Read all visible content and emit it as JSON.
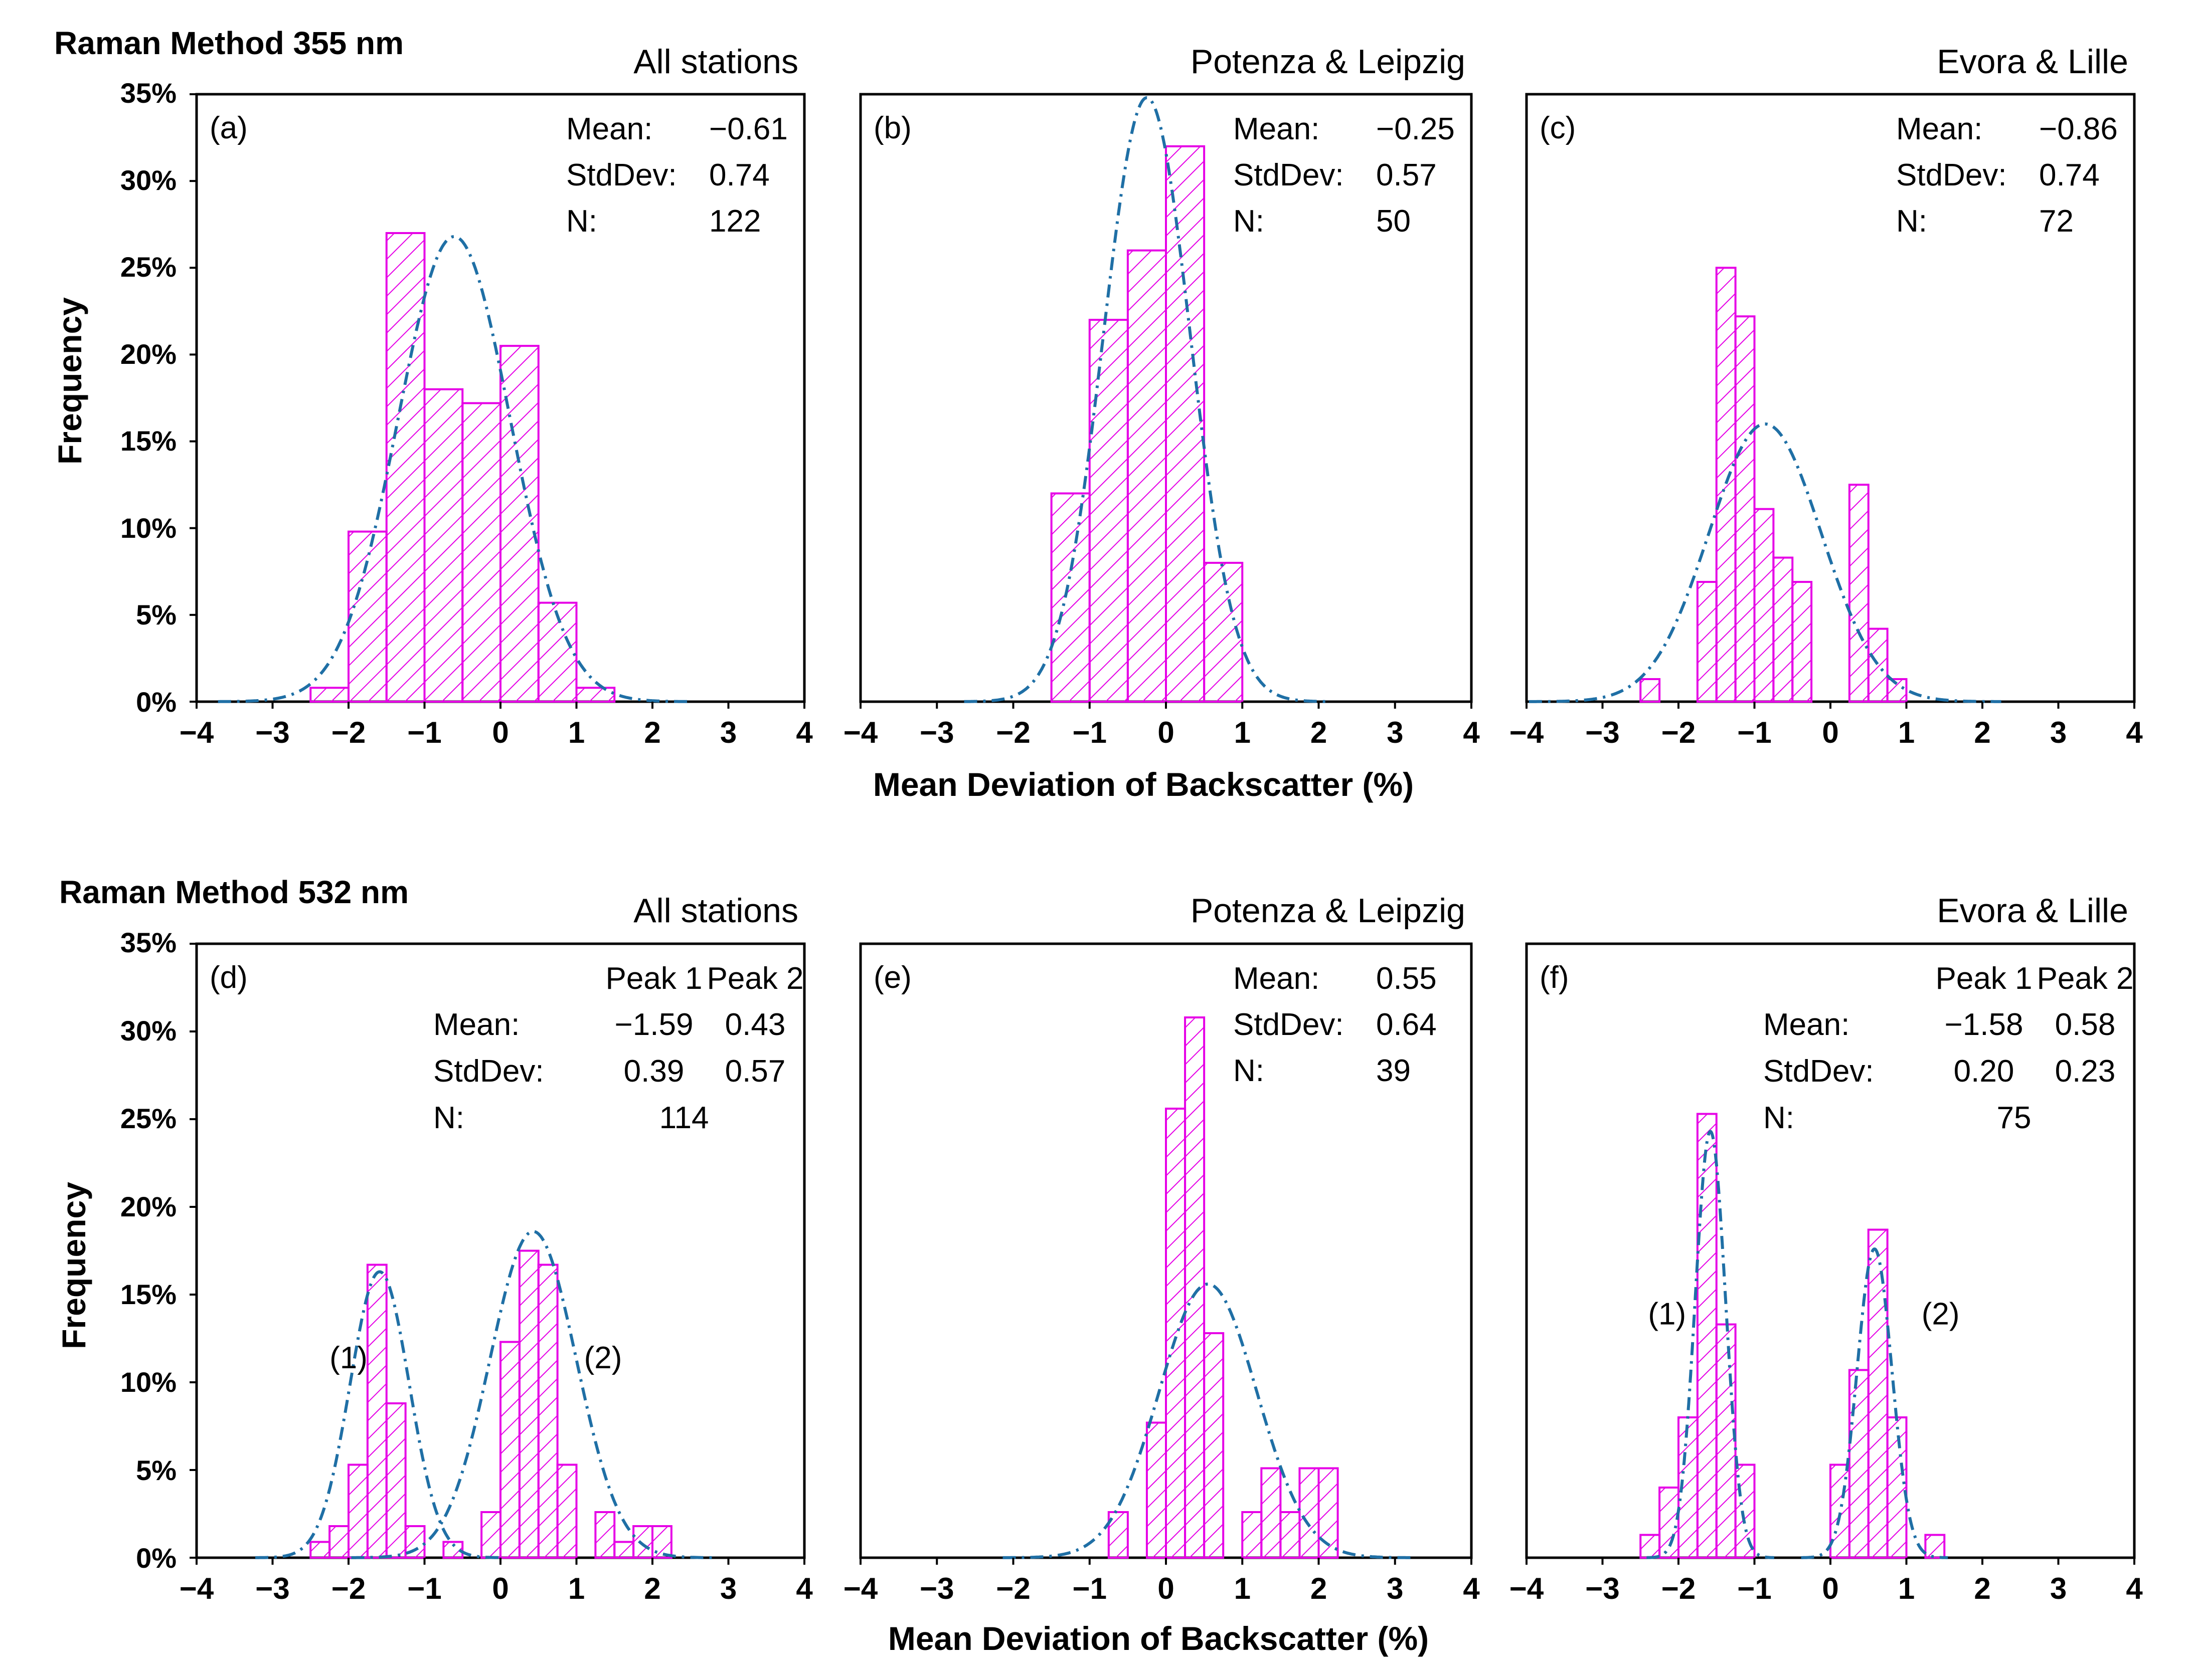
{
  "colors": {
    "bar": "#e600e6",
    "curve": "#1f6fa5",
    "axis": "#000000"
  },
  "rows": [
    {
      "title": "Raman Method  355 nm",
      "ylabel": "Frequency",
      "xlabel": "Mean Deviation of Backscatter (%)"
    },
    {
      "title": "Raman Method  532 nm",
      "ylabel": "Frequency",
      "xlabel": "Mean Deviation of Backscatter (%)"
    }
  ],
  "y_ticks": [
    "0%",
    "5%",
    "10%",
    "15%",
    "20%",
    "25%",
    "30%",
    "35%"
  ],
  "x_ticks": [
    "−4",
    "−3",
    "−2",
    "−1",
    "0",
    "1",
    "2",
    "3",
    "4"
  ],
  "chart_data": [
    {
      "id": "a",
      "type": "bar",
      "row": 0,
      "col": 0,
      "letter": "(a)",
      "title": "All stations",
      "xlim": [
        -4,
        4
      ],
      "ylim": [
        0,
        35
      ],
      "bin_width": 0.5,
      "bins": [
        [
          -2.5,
          0.8
        ],
        [
          -2.0,
          9.8
        ],
        [
          -1.5,
          27.0
        ],
        [
          -1.0,
          18.0
        ],
        [
          -0.5,
          17.2
        ],
        [
          0.0,
          20.5
        ],
        [
          0.5,
          5.7
        ],
        [
          1.0,
          0.8
        ]
      ],
      "fits": [
        {
          "mean": -0.61,
          "sd": 0.74,
          "peak": 26.8
        }
      ],
      "stats": {
        "Mean": {
          "label": "Mean:",
          "v1": "−0.61"
        },
        "StdDev": {
          "label": "StdDev:",
          "v1": "0.74"
        },
        "N": {
          "label": "N:",
          "v1": "122"
        }
      },
      "peak_labels": []
    },
    {
      "id": "b",
      "type": "bar",
      "row": 0,
      "col": 1,
      "letter": "(b)",
      "title": "Potenza & Leipzig",
      "xlim": [
        -4,
        4
      ],
      "ylim": [
        0,
        35
      ],
      "bin_width": 0.5,
      "bins": [
        [
          -1.5,
          12.0
        ],
        [
          -1.0,
          22.0
        ],
        [
          -0.5,
          26.0
        ],
        [
          0.0,
          32.0
        ],
        [
          0.5,
          8.0
        ]
      ],
      "fits": [
        {
          "mean": -0.25,
          "sd": 0.57,
          "peak": 34.8
        }
      ],
      "stats": {
        "Mean": {
          "label": "Mean:",
          "v1": "−0.25"
        },
        "StdDev": {
          "label": "StdDev:",
          "v1": "0.57"
        },
        "N": {
          "label": "N:",
          "v1": "50"
        }
      },
      "peak_labels": []
    },
    {
      "id": "c",
      "type": "bar",
      "row": 0,
      "col": 2,
      "letter": "(c)",
      "title": "Evora & Lille",
      "xlim": [
        -4,
        4
      ],
      "ylim": [
        0,
        35
      ],
      "bin_width": 0.25,
      "bins": [
        [
          -2.5,
          1.3
        ],
        [
          -1.75,
          6.9
        ],
        [
          -1.5,
          25.0
        ],
        [
          -1.25,
          22.2
        ],
        [
          -1.0,
          11.1
        ],
        [
          -0.75,
          8.3
        ],
        [
          -0.5,
          6.9
        ],
        [
          0.25,
          12.5
        ],
        [
          0.5,
          4.2
        ],
        [
          0.75,
          1.3
        ]
      ],
      "fits": [
        {
          "mean": -0.86,
          "sd": 0.74,
          "peak": 16.0
        }
      ],
      "stats": {
        "Mean": {
          "label": "Mean:",
          "v1": "−0.86"
        },
        "StdDev": {
          "label": "StdDev:",
          "v1": "0.74"
        },
        "N": {
          "label": "N:",
          "v1": "72"
        }
      },
      "peak_labels": []
    },
    {
      "id": "d",
      "type": "bar",
      "row": 1,
      "col": 0,
      "letter": "(d)",
      "title": "All stations",
      "xlim": [
        -4,
        4
      ],
      "ylim": [
        0,
        35
      ],
      "bin_width": 0.25,
      "bins": [
        [
          -2.5,
          0.9
        ],
        [
          -2.25,
          1.8
        ],
        [
          -2.0,
          5.3
        ],
        [
          -1.75,
          16.7
        ],
        [
          -1.5,
          8.8
        ],
        [
          -1.25,
          1.8
        ],
        [
          -0.75,
          0.9
        ],
        [
          -0.25,
          2.6
        ],
        [
          0.0,
          12.3
        ],
        [
          0.25,
          17.5
        ],
        [
          0.5,
          16.7
        ],
        [
          0.75,
          5.3
        ],
        [
          1.25,
          2.6
        ],
        [
          1.5,
          0.9
        ],
        [
          1.75,
          1.8
        ],
        [
          2.0,
          1.8
        ]
      ],
      "fits": [
        {
          "mean": -1.59,
          "sd": 0.39,
          "peak": 16.3
        },
        {
          "mean": 0.43,
          "sd": 0.57,
          "peak": 18.6
        }
      ],
      "stats": {
        "header": [
          "Peak 1",
          "Peak 2"
        ],
        "Mean": {
          "label": "Mean:",
          "v1": "−1.59",
          "v2": "0.43"
        },
        "StdDev": {
          "label": "StdDev:",
          "v1": "0.39",
          "v2": "0.57"
        },
        "N": {
          "label": "N:",
          "v1": "114"
        }
      },
      "peak_labels": [
        {
          "text": "(1)",
          "x": -2.0,
          "y": 10.8
        },
        {
          "text": "(2)",
          "x": 1.35,
          "y": 10.8
        }
      ]
    },
    {
      "id": "e",
      "type": "bar",
      "row": 1,
      "col": 1,
      "letter": "(e)",
      "title": "Potenza & Leipzig",
      "xlim": [
        -4,
        4
      ],
      "ylim": [
        0,
        35
      ],
      "bin_width": 0.25,
      "bins": [
        [
          -0.75,
          2.6
        ],
        [
          -0.25,
          7.7
        ],
        [
          0.0,
          25.6
        ],
        [
          0.25,
          30.8
        ],
        [
          0.5,
          12.8
        ],
        [
          1.0,
          2.6
        ],
        [
          1.25,
          5.1
        ],
        [
          1.5,
          2.6
        ],
        [
          1.75,
          5.1
        ],
        [
          2.0,
          5.1
        ]
      ],
      "fits": [
        {
          "mean": 0.55,
          "sd": 0.64,
          "peak": 15.6
        }
      ],
      "stats": {
        "Mean": {
          "label": "Mean:",
          "v1": "0.55"
        },
        "StdDev": {
          "label": "StdDev:",
          "v1": "0.64"
        },
        "N": {
          "label": "N:",
          "v1": "39"
        }
      },
      "peak_labels": []
    },
    {
      "id": "f",
      "type": "bar",
      "row": 1,
      "col": 2,
      "letter": "(f)",
      "title": "Evora & Lille",
      "xlim": [
        -4,
        4
      ],
      "ylim": [
        0,
        35
      ],
      "bin_width": 0.25,
      "bins": [
        [
          -2.5,
          1.3
        ],
        [
          -2.25,
          4.0
        ],
        [
          -2.0,
          8.0
        ],
        [
          -1.75,
          25.3
        ],
        [
          -1.5,
          13.3
        ],
        [
          -1.25,
          5.3
        ],
        [
          0.0,
          5.3
        ],
        [
          0.25,
          10.7
        ],
        [
          0.5,
          18.7
        ],
        [
          0.75,
          8.0
        ],
        [
          1.25,
          1.3
        ]
      ],
      "fits": [
        {
          "mean": -1.58,
          "sd": 0.2,
          "peak": 24.3
        },
        {
          "mean": 0.58,
          "sd": 0.23,
          "peak": 17.6
        }
      ],
      "stats": {
        "header": [
          "Peak 1",
          "Peak 2"
        ],
        "Mean": {
          "label": "Mean:",
          "v1": "−1.58",
          "v2": "0.58"
        },
        "StdDev": {
          "label": "StdDev:",
          "v1": "0.20",
          "v2": "0.23"
        },
        "N": {
          "label": "N:",
          "v1": "75"
        }
      },
      "peak_labels": [
        {
          "text": "(1)",
          "x": -2.15,
          "y": 13.3
        },
        {
          "text": "(2)",
          "x": 1.45,
          "y": 13.3
        }
      ]
    }
  ]
}
